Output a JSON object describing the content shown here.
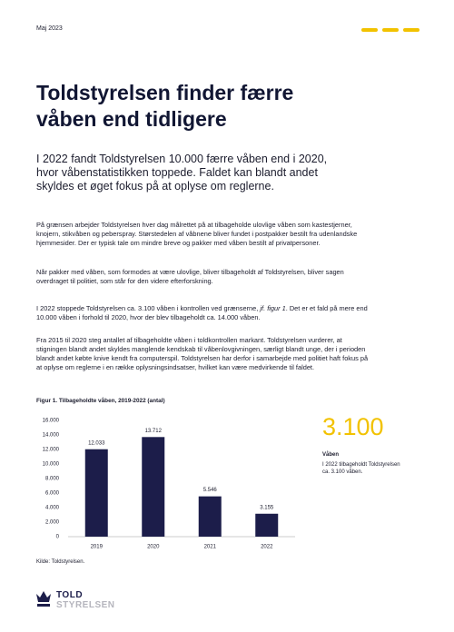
{
  "header": {
    "date": "Maj 2023"
  },
  "title": [
    "Toldstyrelsen finder færre",
    "våben end tidligere"
  ],
  "lead": "I 2022 fandt Toldstyrelsen 10.000 færre våben end i 2020, hvor våbenstatistikken toppede. Faldet kan blandt andet skyldes et øget fokus på at oplyse om reglerne.",
  "body": {
    "p1": "På grænsen arbejder Toldstyrelsen hver dag målrettet på at tilbageholde ulovlige våben som kastestjerner, knojern, stikvåben og peberspray. Størstedelen af våbnene bliver fundet i postpakker bestilt fra udenlandske hjemmesider. Der er typisk tale om mindre breve og pakker med våben bestilt af privatpersoner.",
    "p2": "Når pakker med våben, som formodes at være ulovlige, bliver tilbageholdt af Toldstyrelsen, bliver sagen overdraget til politiet, som står for den videre efterforskning.",
    "p3": {
      "before": "I 2022 stoppede Toldstyrelsen ca. 3.100 våben i kontrollen ved grænserne, ",
      "italic": "jf. figur 1",
      "after": ". Det er et fald på mere end 10.000 våben i forhold til 2020, hvor der blev tilbageholdt ca. 14.000 våben."
    },
    "p4": "Fra 2015 til 2020 steg antallet af tilbageholdte våben i toldkontrollen markant. Toldstyrelsen vurderer, at stigningen blandt andet skyldes manglende kendskab til våbenlovgivningen, særligt blandt unge, der i perioden blandt andet købte knive kendt fra computerspil. Toldstyrelsen har derfor i samarbejde med politiet haft fokus på at oplyse om reglerne i en række oplysningsindsatser, hvilket kan være medvirkende til faldet."
  },
  "figure": {
    "caption": "Figur 1. Tilbageholdte våben, 2019-2022 (antal)",
    "source": "Kilde: Toldstyrelsen."
  },
  "chart_data": {
    "type": "bar",
    "categories": [
      "2019",
      "2020",
      "2021",
      "2022"
    ],
    "values": [
      12033,
      13712,
      5546,
      3155
    ],
    "value_labels": [
      "12.033",
      "13.712",
      "5.546",
      "3.155"
    ],
    "color": "#1c1d4a",
    "ylim": [
      0,
      16000
    ],
    "yticks": [
      0,
      {
        "value": 2000,
        "label": "2.000"
      },
      {
        "value": 4000,
        "label": "4.000"
      },
      {
        "value": 6000,
        "label": "6.000"
      },
      {
        "value": 8000,
        "label": "8.000"
      },
      {
        "value": 10000,
        "label": "10.000"
      },
      {
        "value": 12000,
        "label": "12.000"
      },
      {
        "value": 14000,
        "label": "14.000"
      },
      {
        "value": 16000,
        "label": "16.000"
      }
    ],
    "grid": false
  },
  "highlight": {
    "number": "3.100",
    "label": "Våben",
    "text": "I 2022 tilbageholdt Toldstyrelsen ca. 3.100 våben."
  },
  "logo": {
    "line1": "TOLD",
    "line2": "STYRELSEN"
  }
}
